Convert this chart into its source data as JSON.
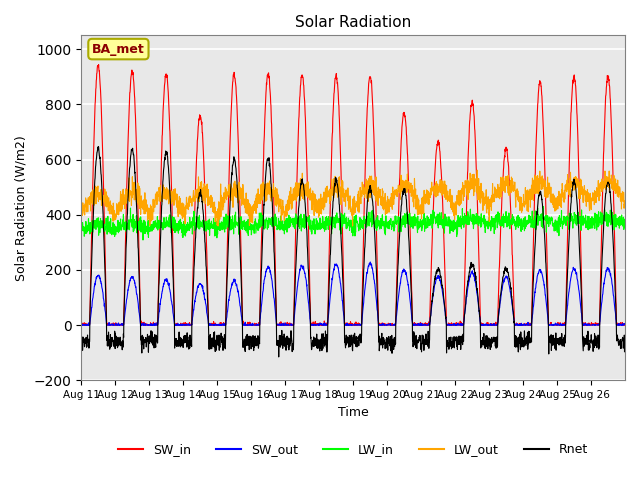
{
  "title": "Solar Radiation",
  "ylabel": "Solar Radiation (W/m2)",
  "xlabel": "Time",
  "ylim": [
    -200,
    1050
  ],
  "yticks": [
    -200,
    0,
    200,
    400,
    600,
    800,
    1000
  ],
  "xtick_labels": [
    "Aug 11",
    "Aug 12",
    "Aug 13",
    "Aug 14",
    "Aug 15",
    "Aug 16",
    "Aug 17",
    "Aug 18",
    "Aug 19",
    "Aug 20",
    "Aug 21",
    "Aug 22",
    "Aug 23",
    "Aug 24",
    "Aug 25",
    "Aug 26"
  ],
  "legend_labels": [
    "SW_in",
    "SW_out",
    "LW_in",
    "LW_out",
    "Rnet"
  ],
  "legend_colors": [
    "red",
    "blue",
    "lime",
    "orange",
    "black"
  ],
  "annotation_text": "BA_met",
  "annotation_color": "#8B0000",
  "annotation_bg": "#FFFF99",
  "annotation_border": "#AAAA00",
  "background_color": "#E8E8E8",
  "grid_color": "white",
  "n_days": 16,
  "pts_per_day": 144,
  "seed": 42,
  "sw_in_peaks": [
    940,
    920,
    910,
    760,
    910,
    910,
    905,
    905,
    900,
    770,
    665,
    810,
    640,
    880,
    900,
    900
  ],
  "sw_out_peaks": [
    180,
    175,
    165,
    150,
    160,
    210,
    215,
    220,
    225,
    200,
    175,
    190,
    175,
    200,
    205,
    205
  ],
  "rnet_peaks": [
    640,
    635,
    625,
    480,
    600,
    605,
    520,
    525,
    500,
    490,
    200,
    220,
    205,
    480,
    520,
    520
  ]
}
